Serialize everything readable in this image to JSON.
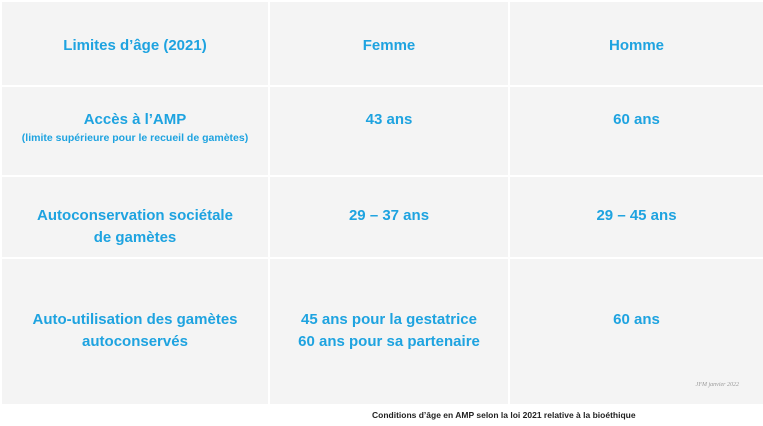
{
  "table": {
    "header": {
      "col1": "Limites d’âge (2021)",
      "col2": "Femme",
      "col3": "Homme"
    },
    "rows": [
      {
        "label_line1": "Accès à l’AMP",
        "label_sub": "(limite supérieure pour le recueil de gamètes)",
        "femme_line1": "43 ans",
        "femme_line2": "",
        "homme": "60 ans"
      },
      {
        "label_line1": "Autoconservation sociétale",
        "label_line2": "de gamètes",
        "femme_line1": "29 – 37 ans",
        "femme_line2": "",
        "homme": "29 – 45 ans"
      },
      {
        "label_line1": "Auto-utilisation des gamètes",
        "label_line2": "autoconservés",
        "femme_line1": "45 ans pour la gestatrice",
        "femme_line2": "60 ans pour sa partenaire",
        "homme": "60 ans"
      }
    ]
  },
  "note": "JFM janvier 2022",
  "caption": "Conditions d’âge en AMP selon la loi 2021 relative à la bioéthique",
  "colors": {
    "accent": "#1ea3e0",
    "cell_bg": "#f4f4f4",
    "grid": "#ffffff"
  }
}
